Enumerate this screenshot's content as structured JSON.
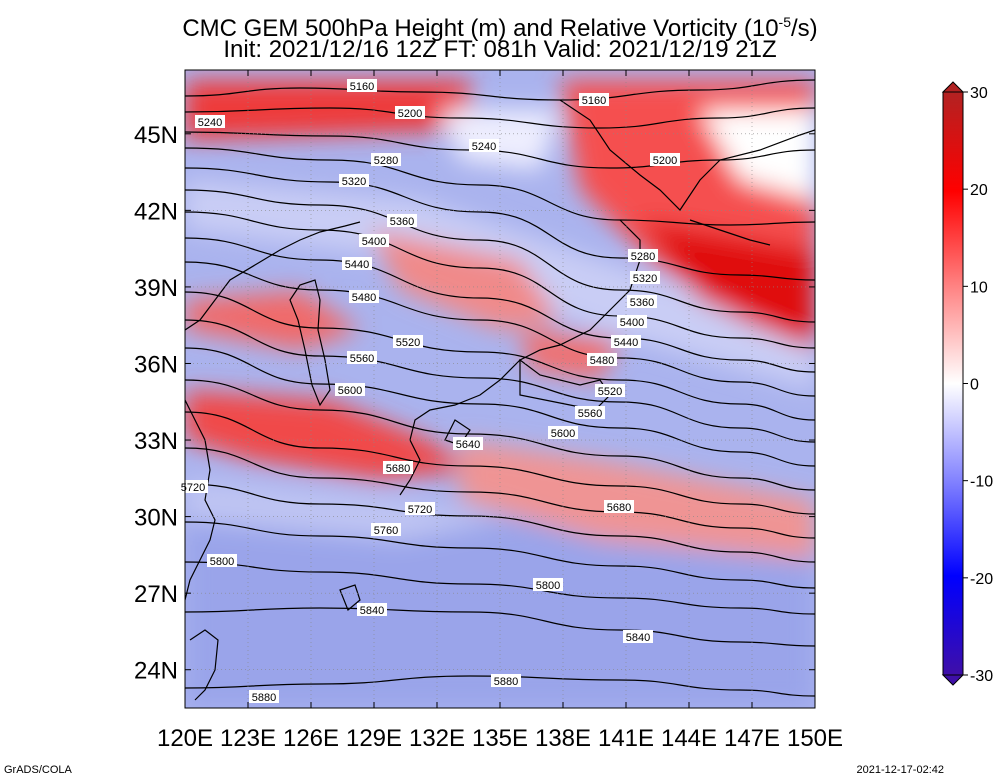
{
  "title": {
    "line1_prefix": "CMC GEM 500hPa Height (m) and Relative Vorticity (10",
    "line1_exponent": "-5",
    "line1_suffix": "/s)",
    "line2": "Init: 2021/12/16 12Z  FT: 081h  Valid: 2021/12/19 21Z"
  },
  "map": {
    "lon_range": [
      120,
      150
    ],
    "lat_range": [
      22.5,
      47.5
    ],
    "lon_ticks": [
      "120E",
      "123E",
      "126E",
      "129E",
      "132E",
      "135E",
      "138E",
      "141E",
      "144E",
      "147E",
      "150E"
    ],
    "lat_ticks": [
      "24N",
      "27N",
      "30N",
      "33N",
      "36N",
      "39N",
      "42N",
      "45N"
    ],
    "lon_tick_values": [
      120,
      123,
      126,
      129,
      132,
      135,
      138,
      141,
      144,
      147,
      150
    ],
    "lat_tick_values": [
      24,
      27,
      30,
      33,
      36,
      39,
      42,
      45
    ],
    "grid": true,
    "contour_labels": [
      "5160",
      "5160",
      "5200",
      "5200",
      "5240",
      "5240",
      "5280",
      "5280",
      "5320",
      "5320",
      "5360",
      "5360",
      "5400",
      "5400",
      "5440",
      "5440",
      "5480",
      "5480",
      "5520",
      "5520",
      "5560",
      "5560",
      "5600",
      "5600",
      "5640",
      "5680",
      "5680",
      "5720",
      "5720",
      "5760",
      "5800",
      "5800",
      "5840",
      "5840",
      "5880",
      "5880"
    ]
  },
  "colorbar": {
    "ticks": [
      "30",
      "20",
      "10",
      "0",
      "-10",
      "-20",
      "-30"
    ],
    "tick_values": [
      30,
      20,
      10,
      0,
      -10,
      -20,
      -30
    ],
    "colors": {
      "max": "#b22222",
      "strong_pos": "#ff0000",
      "pos": "#ff8080",
      "neutral": "#ffffff",
      "neg": "#8080ff",
      "strong_neg": "#0000ff",
      "min": "#3f0fa8"
    }
  },
  "footer": {
    "left": "GrADS/COLA",
    "right": "2021-12-17-02:42"
  }
}
